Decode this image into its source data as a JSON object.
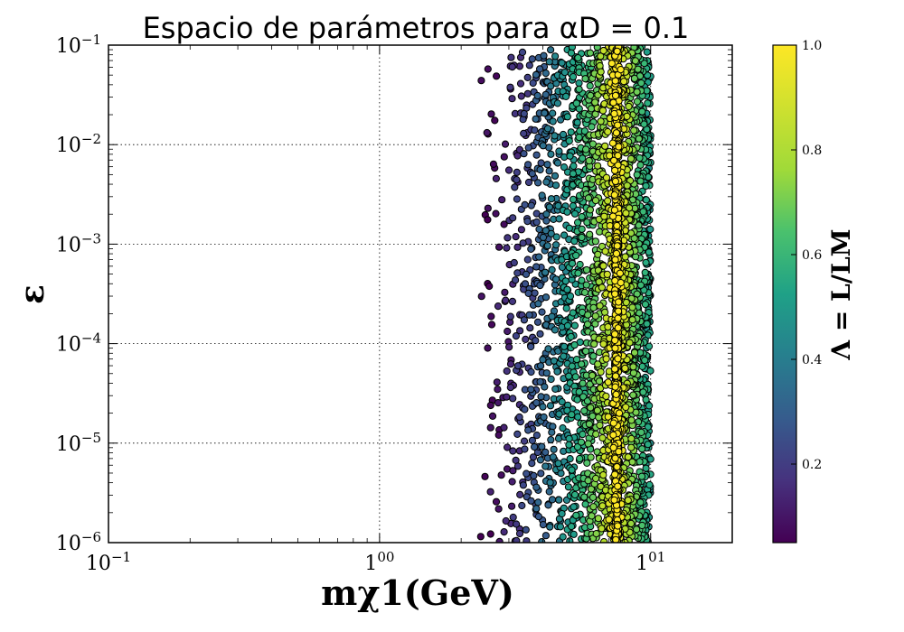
{
  "chart_data": {
    "type": "scatter",
    "title": "Espacio de parámetros para αD = 0.1",
    "xlabel": "mχ1(GeV)",
    "ylabel": "ε",
    "x_scale": "log",
    "y_scale": "log",
    "xlim": [
      0.1,
      20
    ],
    "ylim": [
      1e-06,
      0.1
    ],
    "x_tick_labels": [
      "10−1",
      "100",
      "101"
    ],
    "y_tick_labels": [
      "10−6",
      "10−5",
      "10−4",
      "10−3",
      "10−2",
      "10−1"
    ],
    "grid": true,
    "grid_style": "dotted",
    "colormap": "viridis",
    "colorbar": {
      "label": "Λ = L/LM",
      "range": [
        0.05,
        1.0
      ],
      "tick_labels": [
        "0.2",
        "0.4",
        "0.6",
        "0.8",
        "1.0"
      ],
      "tick_values": [
        0.2,
        0.4,
        0.6,
        0.8,
        1.0
      ]
    },
    "colors": {
      "marker_edge": "#000000",
      "viridis_low": "#440154",
      "viridis_high": "#fde725"
    },
    "series": [
      {
        "distribution": "points spread uniformly in log(epsilon) across the full y-range; x spread between the bounds below; color value rises with x, peaking at the resonance column",
        "x_min": 2.2,
        "x_max": 10.0,
        "resonance_x": 7.5,
        "value_at_x_min": 0.05,
        "value_at_resonance": 1.0
      }
    ]
  }
}
